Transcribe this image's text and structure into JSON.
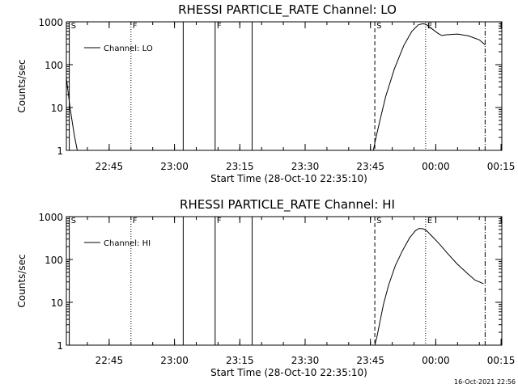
{
  "chart_data": [
    {
      "type": "line",
      "title": "RHESSI PARTICLE_RATE Channel: LO",
      "xlabel": "Start Time (28-Oct-10 22:35:10)",
      "ylabel": "Counts/sec",
      "yscale": "log",
      "ylim": [
        1,
        1000
      ],
      "xlim": [
        "22:35:10",
        "00:15:10"
      ],
      "x_ticks": [
        "22:45",
        "23:00",
        "23:15",
        "23:30",
        "23:45",
        "00:00",
        "00:15"
      ],
      "y_ticks": [
        "1",
        "10",
        "100",
        "1000"
      ],
      "legend": {
        "position": "top-left",
        "entries": [
          "Channel: LO"
        ]
      },
      "series": [
        {
          "name": "Channel: LO",
          "segments": [
            {
              "x": [
                "22:35:10",
                "22:36:00",
                "22:37:00",
                "22:37:40"
              ],
              "y": [
                50,
                10,
                2.2,
                1
              ]
            },
            {
              "x": [
                "23:45:40",
                "23:46:10",
                "23:47:10",
                "23:48:30",
                "23:50:30",
                "23:52:40",
                "23:54:30",
                "23:56:00",
                "23:57:00",
                "23:57:40",
                "23:59:00",
                "00:00:30",
                "00:01:20",
                "00:02:30",
                "00:05:00",
                "00:07:30",
                "00:10:00",
                "00:11:20"
              ],
              "y": [
                1,
                1.8,
                5,
                18,
                80,
                280,
                600,
                850,
                900,
                880,
                700,
                540,
                480,
                500,
                520,
                470,
                380,
                290
              ]
            }
          ]
        }
      ],
      "markers": [
        {
          "x": "22:35:50",
          "label": "S",
          "style": "solid"
        },
        {
          "x": "22:50:00",
          "label": "F",
          "style": "dotted"
        },
        {
          "x": "23:02:00",
          "label": "",
          "style": "solid"
        },
        {
          "x": "23:09:20",
          "label": "F",
          "style": "solid"
        },
        {
          "x": "23:17:50",
          "label": "",
          "style": "solid"
        },
        {
          "x": "23:46:00",
          "label": "S",
          "style": "dashed"
        },
        {
          "x": "23:57:40",
          "label": "E",
          "style": "dotted"
        },
        {
          "x": "00:11:20",
          "label": "",
          "style": "dashdot"
        }
      ]
    },
    {
      "type": "line",
      "title": "RHESSI PARTICLE_RATE Channel: HI",
      "xlabel": "Start Time (28-Oct-10 22:35:10)",
      "ylabel": "Counts/sec",
      "yscale": "log",
      "ylim": [
        1,
        1000
      ],
      "xlim": [
        "22:35:10",
        "00:15:10"
      ],
      "x_ticks": [
        "22:45",
        "23:00",
        "23:15",
        "23:30",
        "23:45",
        "00:00",
        "00:15"
      ],
      "y_ticks": [
        "1",
        "10",
        "100",
        "1000"
      ],
      "legend": {
        "position": "top-left",
        "entries": [
          "Channel: HI"
        ]
      },
      "series": [
        {
          "name": "Channel: HI",
          "segments": [
            {
              "x": [
                "23:46:00",
                "23:46:30",
                "23:47:10",
                "23:48:00",
                "23:49:10",
                "23:50:40",
                "23:52:20",
                "23:54:00",
                "23:55:20",
                "23:56:10",
                "23:57:10",
                "23:58:00",
                "23:59:00",
                "00:00:40",
                "00:02:40",
                "00:04:50",
                "00:07:00",
                "00:09:00",
                "00:11:00"
              ],
              "y": [
                1,
                1.6,
                3.5,
                9,
                25,
                70,
                160,
                320,
                470,
                530,
                520,
                460,
                360,
                240,
                140,
                80,
                50,
                33,
                27
              ]
            }
          ]
        }
      ],
      "markers": [
        {
          "x": "22:35:50",
          "label": "S",
          "style": "solid"
        },
        {
          "x": "22:50:00",
          "label": "F",
          "style": "dotted"
        },
        {
          "x": "23:02:00",
          "label": "",
          "style": "solid"
        },
        {
          "x": "23:09:20",
          "label": "F",
          "style": "solid"
        },
        {
          "x": "23:17:50",
          "label": "",
          "style": "solid"
        },
        {
          "x": "23:46:00",
          "label": "S",
          "style": "dashed"
        },
        {
          "x": "23:57:40",
          "label": "E",
          "style": "dotted"
        },
        {
          "x": "00:11:20",
          "label": "",
          "style": "dashdot"
        }
      ]
    }
  ],
  "footer": {
    "timestamp": "16-Oct-2021 22:56"
  }
}
